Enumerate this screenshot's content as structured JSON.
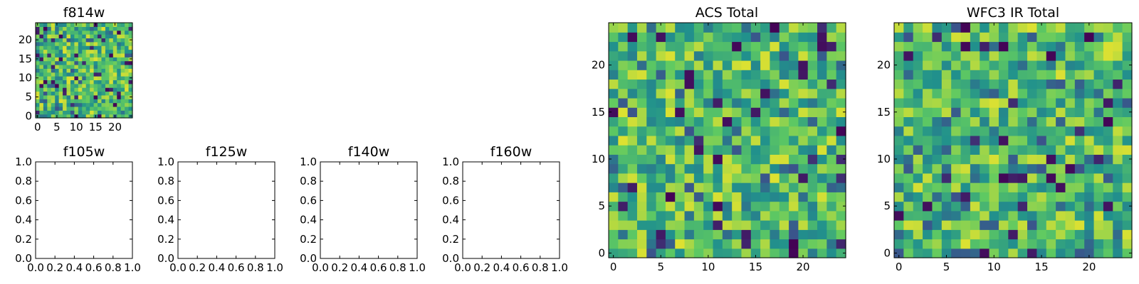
{
  "figure": {
    "background": "#ffffff",
    "colormap": "viridis",
    "colormap_stops": [
      "#440154",
      "#3b528b",
      "#21918c",
      "#5ec962",
      "#fde725"
    ]
  },
  "chart_data": [
    {
      "type": "heatmap",
      "title": "f814w",
      "grid_size": [
        25,
        25
      ],
      "x_ticks": [
        "0",
        "5",
        "10",
        "15",
        "20"
      ],
      "y_ticks": [
        "0",
        "5",
        "10",
        "15",
        "20"
      ],
      "xlim": [
        -0.5,
        24.5
      ],
      "ylim": [
        -0.5,
        24.5
      ],
      "values_description": "random noise image, mostly green-yellow with scattered dark pixels",
      "seed": 11,
      "value_range": [
        0,
        1
      ]
    },
    {
      "type": "line",
      "title": "f105w",
      "x_ticks": [
        "0.0",
        "0.2",
        "0.4",
        "0.6",
        "0.8",
        "1.0"
      ],
      "y_ticks": [
        "0.0",
        "0.2",
        "0.4",
        "0.6",
        "0.8",
        "1.0"
      ],
      "xlim": [
        0,
        1
      ],
      "ylim": [
        0,
        1
      ],
      "series": []
    },
    {
      "type": "line",
      "title": "f125w",
      "x_ticks": [
        "0.0",
        "0.2",
        "0.4",
        "0.6",
        "0.8",
        "1.0"
      ],
      "y_ticks": [
        "0.0",
        "0.2",
        "0.4",
        "0.6",
        "0.8",
        "1.0"
      ],
      "xlim": [
        0,
        1
      ],
      "ylim": [
        0,
        1
      ],
      "series": []
    },
    {
      "type": "line",
      "title": "f140w",
      "x_ticks": [
        "0.0",
        "0.2",
        "0.4",
        "0.6",
        "0.8",
        "1.0"
      ],
      "y_ticks": [
        "0.0",
        "0.2",
        "0.4",
        "0.6",
        "0.8",
        "1.0"
      ],
      "xlim": [
        0,
        1
      ],
      "ylim": [
        0,
        1
      ],
      "series": []
    },
    {
      "type": "line",
      "title": "f160w",
      "x_ticks": [
        "0.0",
        "0.2",
        "0.4",
        "0.6",
        "0.8",
        "1.0"
      ],
      "y_ticks": [
        "0.0",
        "0.2",
        "0.4",
        "0.6",
        "0.8",
        "1.0"
      ],
      "xlim": [
        0,
        1
      ],
      "ylim": [
        0,
        1
      ],
      "series": []
    },
    {
      "type": "heatmap",
      "title": "ACS Total",
      "grid_size": [
        25,
        25
      ],
      "x_ticks": [
        "0",
        "5",
        "10",
        "15",
        "20"
      ],
      "y_ticks": [
        "0",
        "5",
        "10",
        "15",
        "20"
      ],
      "xlim": [
        -0.5,
        24.5
      ],
      "ylim": [
        -0.5,
        24.5
      ],
      "seed": 27,
      "value_range": [
        0,
        1
      ]
    },
    {
      "type": "heatmap",
      "title": "WFC3 IR Total",
      "grid_size": [
        25,
        25
      ],
      "x_ticks": [
        "0",
        "5",
        "10",
        "15",
        "20"
      ],
      "y_ticks": [
        "0",
        "5",
        "10",
        "15",
        "20"
      ],
      "xlim": [
        -0.5,
        24.5
      ],
      "ylim": [
        -0.5,
        24.5
      ],
      "seed": 53,
      "value_range": [
        0,
        1
      ]
    }
  ]
}
